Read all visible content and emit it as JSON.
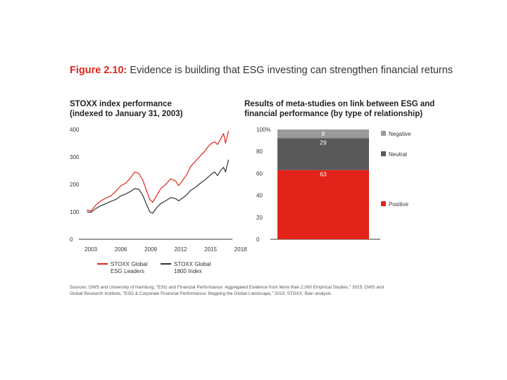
{
  "figure": {
    "label": "Figure 2.10:",
    "title": "Evidence is building that ESG investing can strengthen financial returns"
  },
  "colors": {
    "red": "#e2231a",
    "dark_gray": "#595959",
    "mid_gray": "#9a9a9a",
    "axis": "#333333"
  },
  "chart_data": [
    {
      "type": "line",
      "title_lines": [
        "STOXX index performance",
        "(indexed to January 31, 2003)"
      ],
      "xlabel": "",
      "ylabel": "",
      "xlim": [
        2002.5,
        2016.9
      ],
      "ylim": [
        0,
        400
      ],
      "x_ticks": [
        2003,
        2006,
        2009,
        2012,
        2015,
        2018
      ],
      "x_tick_labels": [
        "2003",
        "2006",
        "2009",
        "2012",
        "2015",
        "2018"
      ],
      "y_ticks": [
        0,
        100,
        200,
        300,
        400
      ],
      "y_tick_labels": [
        "0",
        "100",
        "200",
        "300",
        "400"
      ],
      "grid": false,
      "legend_position": "bottom",
      "series": [
        {
          "name": "STOXX Global ESG Leaders",
          "legend_lines": [
            "STOXX Global",
            "ESG Leaders"
          ],
          "color": "#e2231a",
          "x": [
            2002.6,
            2003.0,
            2003.5,
            2004.0,
            2004.5,
            2005.0,
            2005.5,
            2006.0,
            2006.5,
            2007.0,
            2007.4,
            2007.8,
            2008.2,
            2008.6,
            2008.9,
            2009.2,
            2009.6,
            2010.0,
            2010.5,
            2011.0,
            2011.5,
            2011.8,
            2012.2,
            2012.6,
            2013.0,
            2013.5,
            2014.0,
            2014.4,
            2014.8,
            2015.1,
            2015.4,
            2015.7,
            2016.0,
            2016.3,
            2016.5,
            2016.8
          ],
          "values": [
            108,
            102,
            125,
            140,
            150,
            158,
            175,
            195,
            205,
            225,
            245,
            240,
            215,
            175,
            145,
            135,
            160,
            185,
            200,
            220,
            212,
            195,
            215,
            235,
            265,
            285,
            305,
            320,
            340,
            350,
            355,
            345,
            365,
            385,
            350,
            395
          ]
        },
        {
          "name": "STOXX Global 1800 Index",
          "legend_lines": [
            "STOXX Global",
            "1800 Index"
          ],
          "color": "#333333",
          "x": [
            2002.6,
            2003.0,
            2003.5,
            2004.0,
            2004.5,
            2005.0,
            2005.5,
            2006.0,
            2006.5,
            2007.0,
            2007.4,
            2007.8,
            2008.2,
            2008.6,
            2008.9,
            2009.2,
            2009.6,
            2010.0,
            2010.5,
            2011.0,
            2011.5,
            2011.8,
            2012.2,
            2012.6,
            2013.0,
            2013.5,
            2014.0,
            2014.4,
            2014.8,
            2015.1,
            2015.4,
            2015.7,
            2016.0,
            2016.3,
            2016.5,
            2016.8
          ],
          "values": [
            100,
            98,
            112,
            122,
            130,
            138,
            145,
            158,
            165,
            175,
            185,
            182,
            160,
            125,
            100,
            95,
            115,
            130,
            140,
            152,
            148,
            140,
            150,
            162,
            178,
            190,
            205,
            215,
            228,
            238,
            245,
            232,
            250,
            262,
            245,
            290
          ]
        }
      ]
    },
    {
      "type": "bar",
      "stacked": true,
      "title_lines": [
        "Results of meta-studies on link between ESG and",
        "financial performance (by type of relationship)"
      ],
      "xlabel": "",
      "ylabel": "",
      "ylim": [
        0,
        100
      ],
      "y_ticks": [
        0,
        20,
        40,
        60,
        80,
        100
      ],
      "y_tick_labels": [
        "0",
        "20",
        "40",
        "60",
        "80",
        "100%"
      ],
      "legend_position": "right",
      "categories": [
        ""
      ],
      "series": [
        {
          "name": "Positive",
          "values": [
            63
          ],
          "color": "#e2231a"
        },
        {
          "name": "Neutral",
          "values": [
            29
          ],
          "color": "#595959"
        },
        {
          "name": "Negative",
          "values": [
            8
          ],
          "color": "#9a9a9a"
        }
      ]
    }
  ],
  "sources": {
    "line1": "Sources: DWS and University of Hamburg, \"ESG and Financial Performance: Aggregated Evidence from More than 2,000 Empirical Studies,\" 2015; DWS and",
    "line2": "Global Research Institute, \"ESG & Corporate Financial Performance: Mapping the Global Landscape,\" 2015; STOXX; Bain analysis"
  }
}
